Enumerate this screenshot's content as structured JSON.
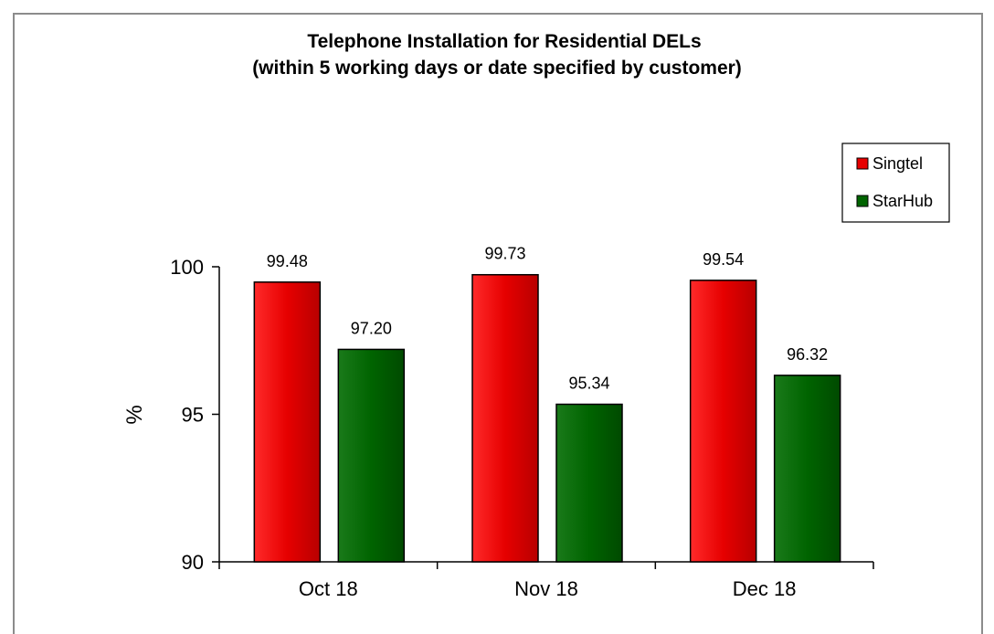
{
  "chart_data": {
    "type": "bar",
    "title": "Telephone Installation for Residential DELs",
    "subtitle": "(within 5 working days or date specified by customer)",
    "ylabel": "%",
    "xlabel": "",
    "categories": [
      "Oct 18",
      "Nov 18",
      "Dec 18"
    ],
    "series": [
      {
        "name": "Singtel",
        "values": [
          99.48,
          99.73,
          99.54
        ],
        "labels": [
          "99.48",
          "99.73",
          "99.54"
        ],
        "color": "#e60000"
      },
      {
        "name": "StarHub",
        "values": [
          97.2,
          95.34,
          96.32
        ],
        "labels": [
          "97.20",
          "95.34",
          "96.32"
        ],
        "color": "#006400"
      }
    ],
    "ylim": [
      90,
      100
    ],
    "yticks": [
      "90",
      "95",
      "100"
    ],
    "grid": false,
    "legend_position": "top-right"
  }
}
